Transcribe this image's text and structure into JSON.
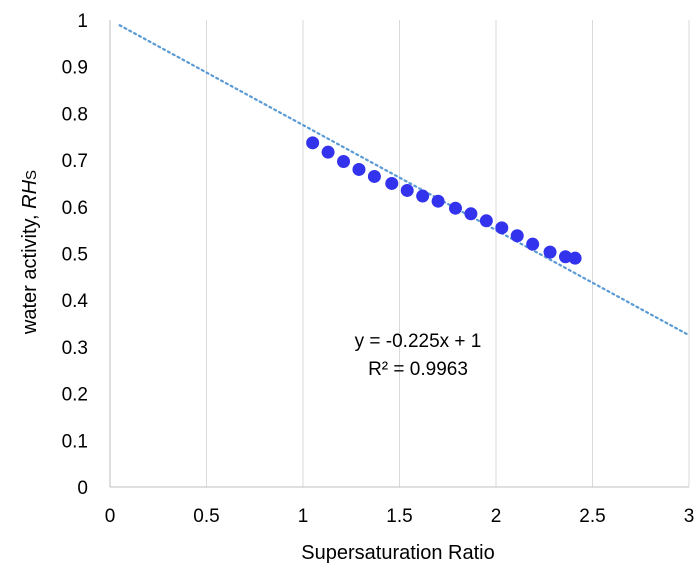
{
  "chart_data": {
    "type": "scatter",
    "xlabel": "Supersaturation Ratio",
    "ylabel_prefix": "water activity, ",
    "ylabel_var": "RH",
    "ylabel_sub": "S",
    "xlim": [
      0,
      3
    ],
    "ylim": [
      0,
      1
    ],
    "x_ticks": [
      0,
      0.5,
      1,
      1.5,
      2,
      2.5,
      3
    ],
    "x_tick_labels": [
      "0",
      "0.5",
      "1",
      "1.5",
      "2",
      "2.5",
      "3"
    ],
    "y_ticks": [
      0,
      0.1,
      0.2,
      0.3,
      0.4,
      0.5,
      0.6,
      0.7,
      0.8,
      0.9,
      1
    ],
    "y_tick_labels": [
      "0",
      "0.1",
      "0.2",
      "0.3",
      "0.4",
      "0.5",
      "0.6",
      "0.7",
      "0.8",
      "0.9",
      "1"
    ],
    "grid": "vertical",
    "points": [
      {
        "x": 1.05,
        "y": 0.737
      },
      {
        "x": 1.13,
        "y": 0.717
      },
      {
        "x": 1.21,
        "y": 0.697
      },
      {
        "x": 1.29,
        "y": 0.68
      },
      {
        "x": 1.37,
        "y": 0.665
      },
      {
        "x": 1.46,
        "y": 0.65
      },
      {
        "x": 1.54,
        "y": 0.635
      },
      {
        "x": 1.62,
        "y": 0.623
      },
      {
        "x": 1.7,
        "y": 0.612
      },
      {
        "x": 1.79,
        "y": 0.597
      },
      {
        "x": 1.87,
        "y": 0.585
      },
      {
        "x": 1.95,
        "y": 0.57
      },
      {
        "x": 2.03,
        "y": 0.555
      },
      {
        "x": 2.11,
        "y": 0.538
      },
      {
        "x": 2.19,
        "y": 0.52
      },
      {
        "x": 2.28,
        "y": 0.503
      },
      {
        "x": 2.36,
        "y": 0.493
      },
      {
        "x": 2.41,
        "y": 0.49
      }
    ],
    "point_color": "#3333ee",
    "trendline": {
      "slope": -0.225,
      "intercept": 1,
      "x_range": [
        0.05,
        3
      ],
      "color": "#5b9bd5",
      "style": "dotted"
    },
    "annotations": [
      "y = -0.225x + 1",
      "R² = 0.9963"
    ]
  }
}
